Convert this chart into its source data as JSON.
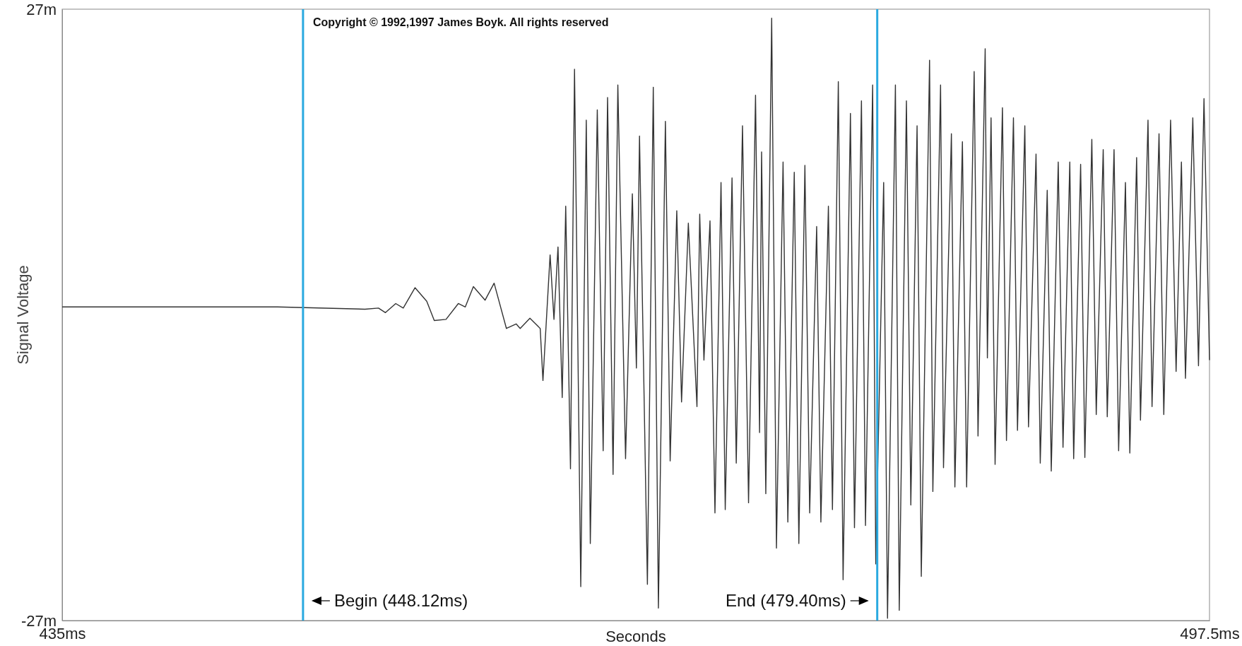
{
  "chart_data": {
    "type": "line",
    "xlabel": "Seconds",
    "ylabel": "Signal Voltage",
    "xlim": [
      435,
      497.5
    ],
    "ylim": [
      -27,
      27
    ],
    "xticks": [
      {
        "value": 435,
        "label": "435ms"
      },
      {
        "value": 497.5,
        "label": "497.5ms"
      }
    ],
    "yticks": [
      {
        "value": -27,
        "label": "-27m"
      },
      {
        "value": 27,
        "label": "27m"
      }
    ],
    "grid": false,
    "line_style": "solid",
    "ref_lines": [
      {
        "axis": "x",
        "value": 448.12,
        "label": "Begin (448.12ms)",
        "color": "#29a9e0"
      },
      {
        "axis": "x",
        "value": 479.4,
        "label": "End (479.40ms)",
        "color": "#29a9e0"
      }
    ],
    "annotations": [
      "Copyright © 1992,1997 James Boyk. All rights reserved"
    ],
    "series": [
      {
        "color": "#333333",
        "x": [
          435,
          446.73,
          451.49,
          452.23,
          452.61,
          453.17,
          453.58,
          454.22,
          454.86,
          455.27,
          455.91,
          456.58,
          456.96,
          457.4,
          458.04,
          458.53,
          459.2,
          459.73,
          459.95,
          460.48,
          461.04,
          461.19,
          461.58,
          461.79,
          462.01,
          462.24,
          462.43,
          462.69,
          462.91,
          463.25,
          463.55,
          463.77,
          464.15,
          464.47,
          464.71,
          465.01,
          465.27,
          465.69,
          466.06,
          466.28,
          466.45,
          466.88,
          467.2,
          467.48,
          467.86,
          468.12,
          468.48,
          468.74,
          469.11,
          469.58,
          469.73,
          469.96,
          470.29,
          470.56,
          470.89,
          471.12,
          471.49,
          471.72,
          472.06,
          472.39,
          472.77,
          472.99,
          473.1,
          473.33,
          473.65,
          473.91,
          474.27,
          474.53,
          474.88,
          475.13,
          475.46,
          475.72,
          476.1,
          476.33,
          476.74,
          476.96,
          477.28,
          477.54,
          477.94,
          478.16,
          478.54,
          478.76,
          479.15,
          479.32,
          479.75,
          479.96,
          480.39,
          480.6,
          480.99,
          481.23,
          481.57,
          481.8,
          482.25,
          482.43,
          482.85,
          483.01,
          483.44,
          483.63,
          484.04,
          484.27,
          484.68,
          484.89,
          485.28,
          485.4,
          485.6,
          485.82,
          486.22,
          486.44,
          486.82,
          487.04,
          487.44,
          487.64,
          488.05,
          488.28,
          488.66,
          488.88,
          489.26,
          489.52,
          489.89,
          490.1,
          490.48,
          490.71,
          491.09,
          491.33,
          491.71,
          491.93,
          492.3,
          492.55,
          492.92,
          493.16,
          493.53,
          493.74,
          494.15,
          494.37,
          494.75,
          495.01,
          495.38,
          495.68,
          495.97,
          496.19,
          496.59,
          496.9,
          497.2,
          497.5
        ],
        "values": [
          0.7,
          0.7,
          0.5,
          0.6,
          0.2,
          1,
          0.6,
          2.4,
          1.2,
          -0.5,
          -0.4,
          1,
          0.7,
          2.5,
          1.3,
          2.8,
          -1.2,
          -0.8,
          -1.2,
          -0.3,
          -1.2,
          -5.8,
          5.3,
          -0.4,
          6,
          -7.3,
          9.6,
          -13.6,
          21.7,
          -24,
          17.2,
          -20.2,
          18.1,
          -12,
          19.2,
          -14.1,
          20.3,
          -12.7,
          10.7,
          -4.7,
          15.8,
          -23.8,
          20.1,
          -25.9,
          17.1,
          -12.9,
          9.2,
          -7.7,
          8.1,
          -8.1,
          8.9,
          -4,
          8.3,
          -17.5,
          11.7,
          -17.2,
          12.1,
          -13.1,
          16.7,
          -16.6,
          19.4,
          -10.4,
          14.4,
          -15.8,
          26.2,
          -20.6,
          13.5,
          -18.3,
          12.6,
          -20.2,
          13.2,
          -17.5,
          7.8,
          -18.3,
          9.6,
          -17.2,
          20.6,
          -23.4,
          17.8,
          -18.8,
          18.9,
          -18.6,
          20.3,
          -22,
          11.7,
          -26.8,
          20.3,
          -26.1,
          18.9,
          -16.8,
          16.7,
          -23.1,
          22.5,
          -15.6,
          20.3,
          -13.5,
          16,
          -15.2,
          15.3,
          -15.2,
          21.5,
          -10.7,
          23.5,
          -3.8,
          17.4,
          -13.2,
          18.3,
          -11.1,
          17.4,
          -10.2,
          16.7,
          -9.9,
          14.2,
          -13.1,
          11,
          -13.8,
          13.5,
          -11.7,
          13.5,
          -12.7,
          13.3,
          -12.6,
          15.5,
          -8.8,
          14.6,
          -9,
          14.6,
          -12,
          11.7,
          -12.2,
          13.9,
          -9.3,
          17.2,
          -8.1,
          16,
          -8.8,
          17.2,
          -5,
          13.5,
          -5.6,
          17.4,
          -4.5,
          19.1,
          -4
        ]
      }
    ]
  }
}
